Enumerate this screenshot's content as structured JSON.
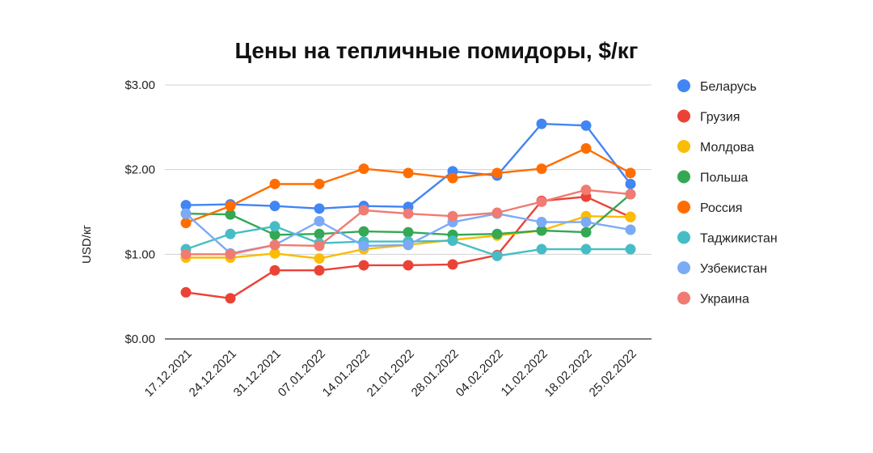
{
  "chart_data": {
    "type": "line",
    "title": "Цены на тепличные помидоры, $/кг",
    "ylabel": "USD/кг",
    "xlabel": "",
    "ylim": [
      0,
      3
    ],
    "yticks": [
      "$0.00",
      "$1.00",
      "$2.00",
      "$3.00"
    ],
    "ytick_values": [
      0,
      1,
      2,
      3
    ],
    "grid": true,
    "legend_position": "right",
    "categories": [
      "17.12.2021",
      "24.12.2021",
      "31.12.2021",
      "07.01.2022",
      "14.01.2022",
      "21.01.2022",
      "28.01.2022",
      "04.02.2022",
      "11.02.2022",
      "18.02.2022",
      "25.02.2022"
    ],
    "series": [
      {
        "name": "Беларусь",
        "color": "#4285F4",
        "values": [
          1.58,
          1.59,
          1.57,
          1.54,
          1.57,
          1.56,
          1.98,
          1.93,
          2.54,
          2.52,
          1.83
        ]
      },
      {
        "name": "Грузия",
        "color": "#EA4335",
        "values": [
          0.55,
          0.48,
          0.81,
          0.81,
          0.87,
          0.87,
          0.88,
          0.99,
          1.63,
          1.68,
          1.44
        ]
      },
      {
        "name": "Молдова",
        "color": "#FBBC04",
        "values": [
          0.96,
          0.96,
          1.01,
          0.95,
          1.06,
          1.11,
          1.17,
          1.22,
          1.28,
          1.45,
          1.44
        ]
      },
      {
        "name": "Польша",
        "color": "#34A853",
        "values": [
          1.48,
          1.47,
          1.23,
          1.24,
          1.27,
          1.26,
          1.23,
          1.24,
          1.28,
          1.26,
          1.71
        ]
      },
      {
        "name": "Россия",
        "color": "#FF6D01",
        "values": [
          1.37,
          1.57,
          1.83,
          1.83,
          2.01,
          1.96,
          1.9,
          1.96,
          2.01,
          2.25,
          1.96
        ]
      },
      {
        "name": "Таджикистан",
        "color": "#46BDC6",
        "values": [
          1.06,
          1.24,
          1.33,
          1.13,
          1.15,
          1.15,
          1.16,
          0.98,
          1.06,
          1.06,
          1.06
        ]
      },
      {
        "name": "Узбекистан",
        "color": "#7BAAF7",
        "values": [
          1.48,
          1.01,
          1.11,
          1.39,
          1.1,
          1.11,
          1.38,
          1.48,
          1.38,
          1.38,
          1.29
        ]
      },
      {
        "name": "Украина",
        "color": "#F07B72",
        "values": [
          1.0,
          1.0,
          1.11,
          1.1,
          1.52,
          1.48,
          1.45,
          1.49,
          1.62,
          1.76,
          1.71
        ]
      }
    ]
  }
}
